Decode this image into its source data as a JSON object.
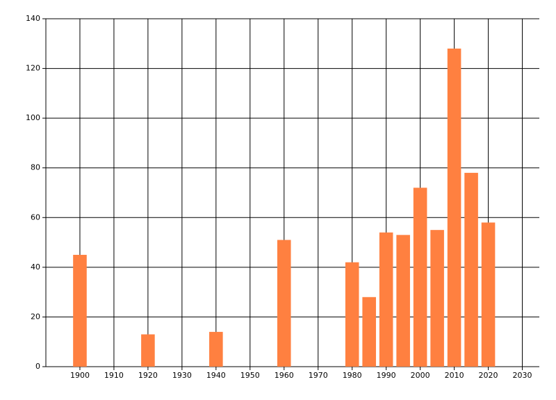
{
  "chart_data": {
    "type": "bar",
    "x": [
      1900,
      1920,
      1940,
      1960,
      1980,
      1985,
      1990,
      1995,
      2000,
      2005,
      2010,
      2015,
      2020
    ],
    "values": [
      45,
      13,
      14,
      51,
      42,
      28,
      54,
      53,
      72,
      55,
      128,
      78,
      58
    ],
    "color": "#ff8040",
    "xlim": [
      1890,
      2035
    ],
    "xticks": [
      1900,
      1910,
      1920,
      1930,
      1940,
      1950,
      1960,
      1970,
      1980,
      1990,
      2000,
      2010,
      2020,
      2030
    ],
    "ylim": [
      0,
      140
    ],
    "yticks": [
      0,
      20,
      40,
      60,
      80,
      100,
      120,
      140
    ],
    "grid": true
  }
}
